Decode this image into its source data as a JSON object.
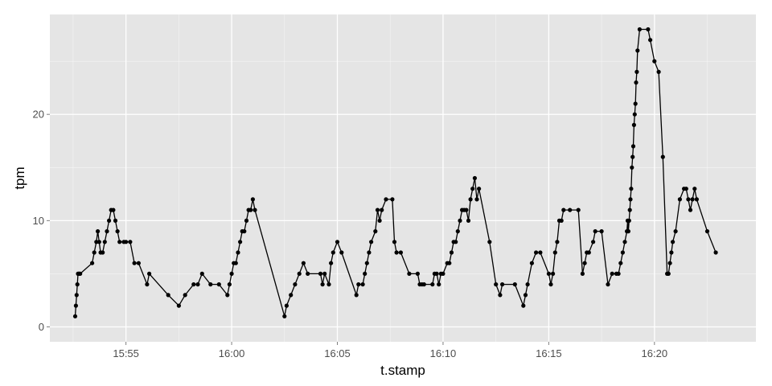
{
  "chart_data": {
    "type": "line",
    "xlabel": "t.stamp",
    "ylabel": "tpm",
    "x_unit": "time (HH:MM)",
    "xlim": [
      "15:51:24",
      "16:24:48"
    ],
    "ylim": [
      -1.4,
      29.4
    ],
    "x_ticks": [
      "15:55",
      "16:00",
      "16:05",
      "16:10",
      "16:15",
      "16:20"
    ],
    "y_ticks": [
      0,
      10,
      20
    ],
    "grid": true,
    "legend": "none",
    "colors": {
      "panel": "#e5e5e5",
      "grid": "#ffffff",
      "line": "#000000",
      "tick_text": "#4d4d4d"
    },
    "series": [
      {
        "x": [
          "15:52:36",
          "15:52:38",
          "15:52:40",
          "15:52:42",
          "15:52:44",
          "15:52:46",
          "15:52:48",
          "15:52:50",
          "15:53:24",
          "15:53:30",
          "15:53:36",
          "15:53:40",
          "15:53:44",
          "15:53:48",
          "15:53:54",
          "15:54:00",
          "15:54:06",
          "15:54:12",
          "15:54:18",
          "15:54:24",
          "15:54:30",
          "15:54:36",
          "15:54:42",
          "15:54:54",
          "15:55:00",
          "15:55:12",
          "15:55:24",
          "15:55:36",
          "15:56:00",
          "15:56:06",
          "15:57:00",
          "15:57:30",
          "15:57:48",
          "15:58:12",
          "15:58:24",
          "15:58:36",
          "15:59:00",
          "15:59:24",
          "15:59:48",
          "15:59:54",
          "16:00:00",
          "16:00:06",
          "16:00:12",
          "16:00:18",
          "16:00:24",
          "16:00:30",
          "16:00:36",
          "16:00:42",
          "16:00:48",
          "16:00:54",
          "16:01:00",
          "16:01:06",
          "16:02:30",
          "16:02:36",
          "16:02:48",
          "16:03:00",
          "16:03:12",
          "16:03:24",
          "16:03:36",
          "16:04:12",
          "16:04:18",
          "16:04:24",
          "16:04:36",
          "16:04:42",
          "16:04:48",
          "16:05:00",
          "16:05:12",
          "16:05:54",
          "16:06:00",
          "16:06:12",
          "16:06:18",
          "16:06:24",
          "16:06:30",
          "16:06:36",
          "16:06:48",
          "16:06:54",
          "16:07:00",
          "16:07:06",
          "16:07:18",
          "16:07:36",
          "16:07:42",
          "16:07:48",
          "16:08:00",
          "16:08:24",
          "16:08:48",
          "16:08:54",
          "16:09:00",
          "16:09:06",
          "16:09:30",
          "16:09:36",
          "16:09:42",
          "16:09:48",
          "16:09:54",
          "16:10:00",
          "16:10:12",
          "16:10:18",
          "16:10:24",
          "16:10:30",
          "16:10:36",
          "16:10:42",
          "16:10:48",
          "16:10:54",
          "16:11:00",
          "16:11:06",
          "16:11:12",
          "16:11:18",
          "16:11:24",
          "16:11:30",
          "16:11:36",
          "16:11:42",
          "16:12:12",
          "16:12:30",
          "16:12:42",
          "16:12:48",
          "16:13:24",
          "16:13:48",
          "16:13:54",
          "16:14:00",
          "16:14:12",
          "16:14:24",
          "16:14:36",
          "16:15:00",
          "16:15:06",
          "16:15:12",
          "16:15:18",
          "16:15:24",
          "16:15:30",
          "16:15:36",
          "16:15:42",
          "16:16:00",
          "16:16:24",
          "16:16:36",
          "16:16:42",
          "16:16:48",
          "16:16:54",
          "16:17:06",
          "16:17:12",
          "16:17:30",
          "16:17:48",
          "16:18:00",
          "16:18:12",
          "16:18:18",
          "16:18:24",
          "16:18:30",
          "16:18:36",
          "16:18:42",
          "16:18:44",
          "16:18:46",
          "16:18:48",
          "16:18:50",
          "16:18:52",
          "16:18:54",
          "16:18:56",
          "16:18:58",
          "16:19:00",
          "16:19:02",
          "16:19:04",
          "16:19:06",
          "16:19:08",
          "16:19:10",
          "16:19:12",
          "16:19:18",
          "16:19:42",
          "16:19:48",
          "16:20:00",
          "16:20:12",
          "16:20:24",
          "16:20:36",
          "16:20:38",
          "16:20:40",
          "16:20:44",
          "16:20:48",
          "16:20:52",
          "16:21:00",
          "16:21:12",
          "16:21:24",
          "16:21:30",
          "16:21:36",
          "16:21:42",
          "16:21:48",
          "16:21:54",
          "16:22:00",
          "16:22:30",
          "16:22:54"
        ],
        "y": [
          1,
          2,
          3,
          4,
          5,
          5,
          5,
          5,
          6,
          7,
          8,
          9,
          8,
          7,
          7,
          8,
          9,
          10,
          11,
          11,
          10,
          9,
          8,
          8,
          8,
          8,
          6,
          6,
          4,
          5,
          3,
          2,
          3,
          4,
          4,
          5,
          4,
          4,
          3,
          4,
          5,
          6,
          6,
          7,
          8,
          9,
          9,
          10,
          11,
          11,
          12,
          11,
          1,
          2,
          3,
          4,
          5,
          6,
          5,
          5,
          4,
          5,
          4,
          6,
          7,
          8,
          7,
          3,
          4,
          4,
          5,
          6,
          7,
          8,
          9,
          11,
          10,
          11,
          12,
          12,
          8,
          7,
          7,
          5,
          5,
          4,
          4,
          4,
          4,
          5,
          5,
          4,
          5,
          5,
          6,
          6,
          7,
          8,
          8,
          9,
          10,
          11,
          11,
          11,
          10,
          12,
          13,
          14,
          12,
          13,
          8,
          4,
          3,
          4,
          4,
          2,
          3,
          4,
          6,
          7,
          7,
          5,
          4,
          5,
          7,
          8,
          10,
          10,
          11,
          11,
          11,
          5,
          6,
          7,
          7,
          8,
          9,
          9,
          4,
          5,
          5,
          5,
          6,
          7,
          8,
          9,
          10,
          9,
          10,
          11,
          12,
          13,
          15,
          16,
          17,
          19,
          20,
          21,
          23,
          24,
          26,
          28,
          28,
          27,
          25,
          24,
          16,
          5,
          5,
          5,
          6,
          7,
          8,
          9,
          12,
          13,
          13,
          12,
          11,
          12,
          13,
          12,
          9,
          7
        ]
      }
    ]
  }
}
